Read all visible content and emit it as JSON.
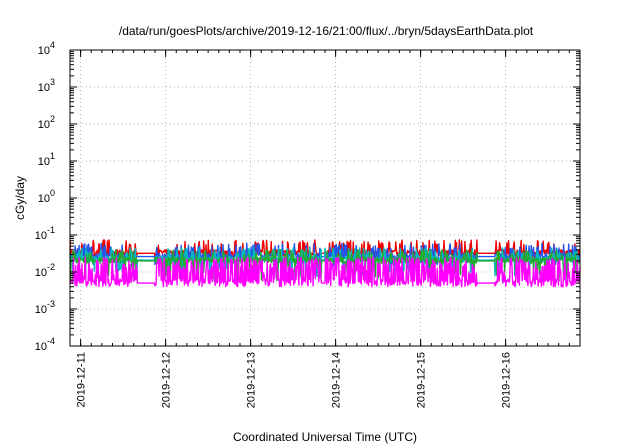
{
  "chart_data": {
    "type": "line",
    "title": "/data/run/goesPlots/archive/2019-12-16/21:00/flux/../bryn/5daysEarthData.plot",
    "xlabel": "Coordinated Universal Time (UTC)",
    "ylabel": "cGy/day",
    "x_range": [
      "2019-12-10T21:00",
      "2019-12-16T21:00"
    ],
    "y_scale": "log",
    "ylim": [
      0.0001,
      10000
    ],
    "y_ticks": [
      {
        "value": 0.0001,
        "base": "10",
        "exp": "-4"
      },
      {
        "value": 0.001,
        "base": "10",
        "exp": "-3"
      },
      {
        "value": 0.01,
        "base": "10",
        "exp": "-2"
      },
      {
        "value": 0.1,
        "base": "10",
        "exp": "-1"
      },
      {
        "value": 1,
        "base": "10",
        "exp": "0"
      },
      {
        "value": 10,
        "base": "10",
        "exp": "1"
      },
      {
        "value": 100,
        "base": "10",
        "exp": "2"
      },
      {
        "value": 1000,
        "base": "10",
        "exp": "3"
      },
      {
        "value": 10000,
        "base": "10",
        "exp": "4"
      }
    ],
    "x_ticks": [
      {
        "date": "2019-12-11",
        "label": "2019-12-11"
      },
      {
        "date": "2019-12-12",
        "label": "2019-12-12"
      },
      {
        "date": "2019-12-13",
        "label": "2019-12-13"
      },
      {
        "date": "2019-12-14",
        "label": "2019-12-14"
      },
      {
        "date": "2019-12-15",
        "label": "2019-12-15"
      },
      {
        "date": "2019-12-16",
        "label": "2019-12-16"
      }
    ],
    "grid": true,
    "legend": "none",
    "series": [
      {
        "color": "#ee0000",
        "baseline": 0.032,
        "spike_max": 0.075,
        "dip_min": 0.018
      },
      {
        "color": "#2255ee",
        "baseline": 0.026,
        "spike_max": 0.06,
        "dip_min": 0.012
      },
      {
        "color": "#00bbbb",
        "baseline": 0.021,
        "spike_max": 0.045,
        "dip_min": 0.007
      },
      {
        "color": "#22aa33",
        "baseline": 0.02,
        "spike_max": 0.04,
        "dip_min": 0.0055
      },
      {
        "color": "#ff00ff",
        "baseline": 0.005,
        "spike_max": 0.03,
        "dip_min": 0.004
      }
    ],
    "data_gaps": [
      [
        "2019-12-11T16:00",
        "2019-12-11T21:00"
      ],
      [
        "2019-12-13T20:00",
        "2019-12-13T21:00"
      ],
      [
        "2019-12-15T16:00",
        "2019-12-15T21:00"
      ]
    ]
  }
}
